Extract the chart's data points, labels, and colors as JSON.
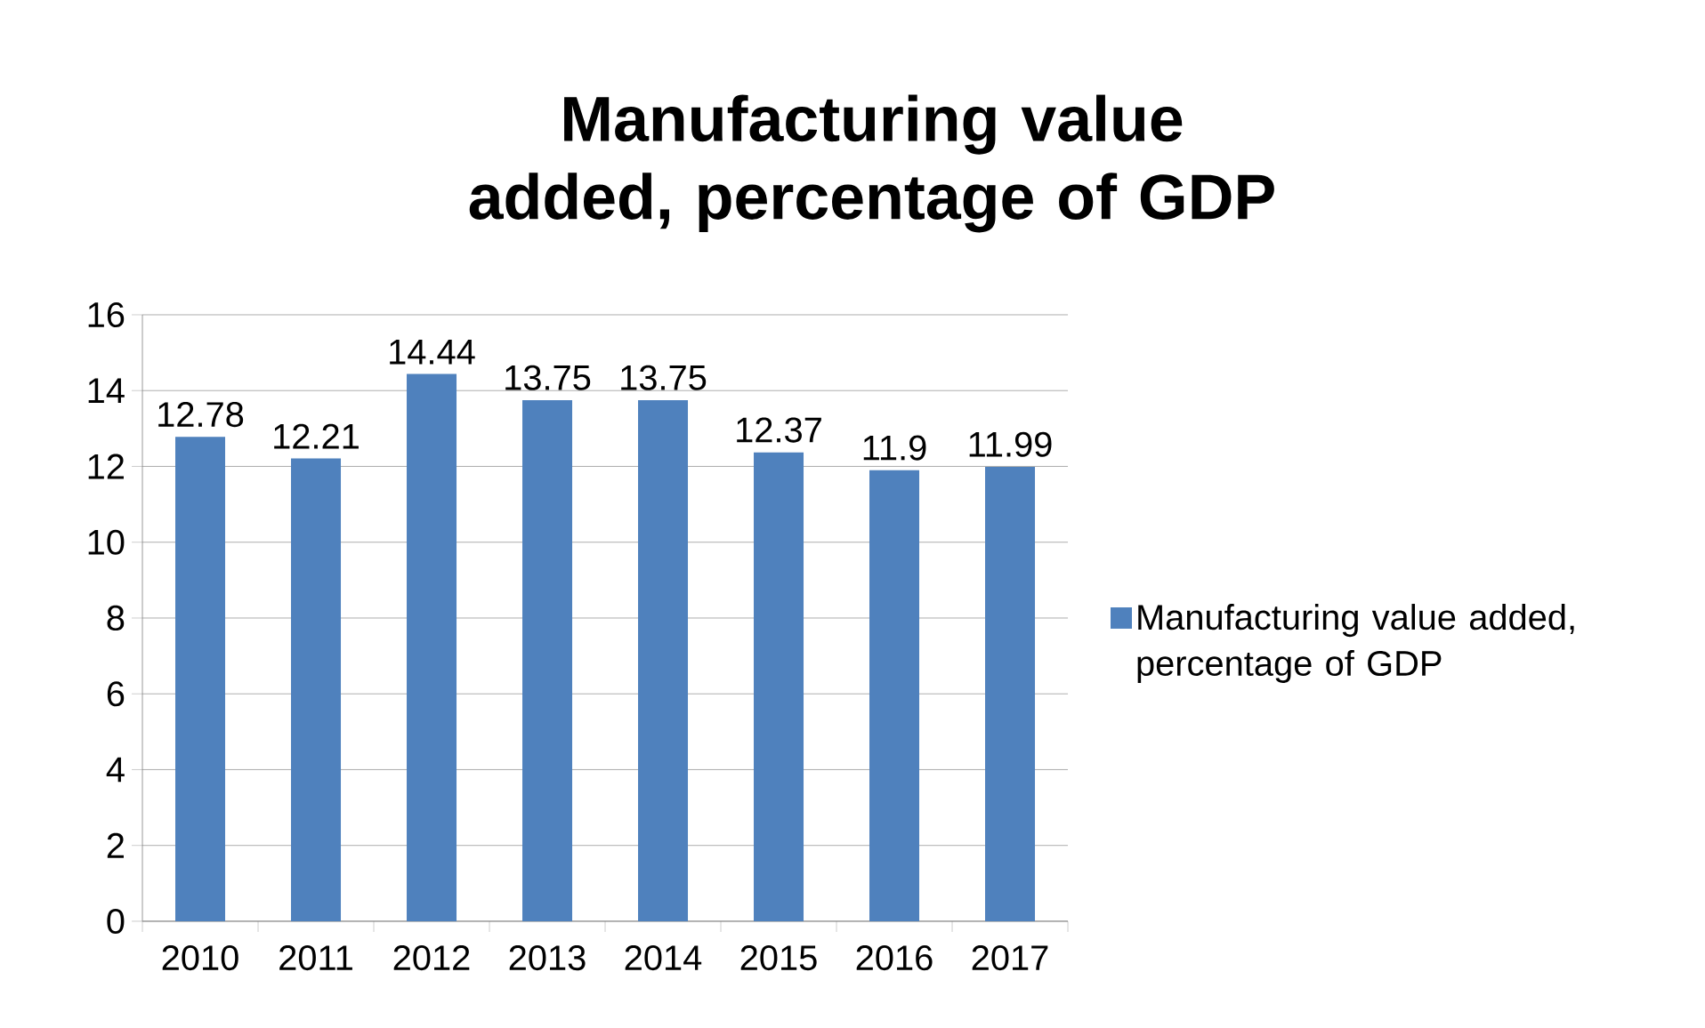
{
  "chart_data": {
    "type": "bar",
    "title": "Manufacturing value added, percentage of GDP",
    "categories": [
      "2010",
      "2011",
      "2012",
      "2013",
      "2014",
      "2015",
      "2016",
      "2017"
    ],
    "series": [
      {
        "name": "Manufacturing value added, percentage of GDP",
        "color": "#4f81bd",
        "values": [
          12.78,
          12.21,
          14.44,
          13.75,
          13.75,
          12.37,
          11.9,
          11.99
        ]
      }
    ],
    "ylim": [
      0,
      16
    ],
    "yticks": [
      0,
      2,
      4,
      6,
      8,
      10,
      12,
      14,
      16
    ],
    "grid": "y",
    "legend": "right",
    "data_labels": true
  }
}
